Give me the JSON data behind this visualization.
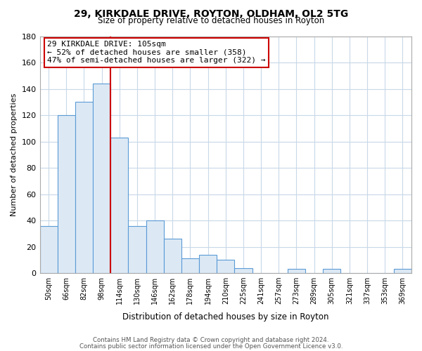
{
  "title": "29, KIRKDALE DRIVE, ROYTON, OLDHAM, OL2 5TG",
  "subtitle": "Size of property relative to detached houses in Royton",
  "xlabel": "Distribution of detached houses by size in Royton",
  "ylabel": "Number of detached properties",
  "bar_labels": [
    "50sqm",
    "66sqm",
    "82sqm",
    "98sqm",
    "114sqm",
    "130sqm",
    "146sqm",
    "162sqm",
    "178sqm",
    "194sqm",
    "210sqm",
    "225sqm",
    "241sqm",
    "257sqm",
    "273sqm",
    "289sqm",
    "305sqm",
    "321sqm",
    "337sqm",
    "353sqm",
    "369sqm"
  ],
  "bar_values": [
    36,
    120,
    130,
    144,
    103,
    36,
    40,
    26,
    11,
    14,
    10,
    4,
    0,
    0,
    3,
    0,
    3,
    0,
    0,
    0,
    3
  ],
  "bar_color": "#dce9f5",
  "bar_edge_color": "#5b9bd5",
  "vline_x": 4.0,
  "vline_color": "#cc0000",
  "ylim": [
    0,
    180
  ],
  "yticks": [
    0,
    20,
    40,
    60,
    80,
    100,
    120,
    140,
    160,
    180
  ],
  "annotation_text": "29 KIRKDALE DRIVE: 105sqm\n← 52% of detached houses are smaller (358)\n47% of semi-detached houses are larger (322) →",
  "annotation_box_color": "#ffffff",
  "annotation_box_edge": "#cc0000",
  "footer1": "Contains HM Land Registry data © Crown copyright and database right 2024.",
  "footer2": "Contains public sector information licensed under the Open Government Licence v3.0.",
  "bg_color": "#ffffff",
  "grid_color": "#c8d8e8"
}
